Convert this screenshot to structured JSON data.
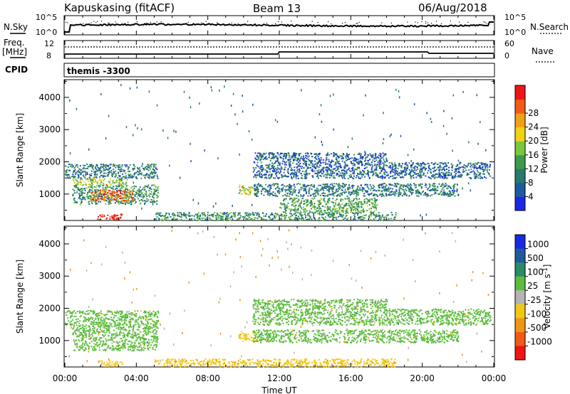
{
  "header": {
    "station": "Kapuskasing (fitACF)",
    "beam": "Beam 13",
    "date": "06/Aug/2018"
  },
  "top_panels": {
    "nsky_label": "N.Sky",
    "nsky_ticks": [
      "10^5",
      "10^0"
    ],
    "nsearch_label": "N.Search",
    "nsearch_ticks": [
      "10^5",
      "10^0"
    ],
    "freq_label": "Freq.",
    "freq_unit": "[MHz]",
    "freq_ticks": [
      "12",
      "8"
    ],
    "nave_label": "Nave",
    "nave_ticks": [
      "60",
      "0"
    ],
    "cpid_label": "CPID",
    "cpid_value": "themis -3300"
  },
  "chart_data": [
    {
      "type": "heatmap",
      "name": "power",
      "ylabel": "Slant Range [km]",
      "ylim": [
        180,
        4550
      ],
      "yticks": [
        1000,
        2000,
        3000,
        4000
      ],
      "xlim": [
        0,
        24
      ],
      "xticks": [
        "00:00",
        "04:00",
        "08:00",
        "12:00",
        "16:00",
        "20:00",
        "00:00"
      ],
      "colorbar": {
        "label": "Power [dB]",
        "ticks": [
          4,
          8,
          12,
          16,
          20,
          24,
          28
        ],
        "range": [
          0,
          30
        ],
        "colors": [
          "#1a28e6",
          "#1e5aa0",
          "#2a7a6a",
          "#3c9a4c",
          "#7cc83c",
          "#f0d414",
          "#f0a014",
          "#f05a14",
          "#f01414"
        ]
      },
      "regions": [
        {
          "t": [
            0.0,
            5.2
          ],
          "r": [
            1500,
            1950
          ],
          "level": 8
        },
        {
          "t": [
            0.4,
            3.5
          ],
          "r": [
            1300,
            1500
          ],
          "level": 16
        },
        {
          "t": [
            0.4,
            5.2
          ],
          "r": [
            700,
            1300
          ],
          "level": 10
        },
        {
          "t": [
            1.4,
            3.8
          ],
          "r": [
            800,
            1150
          ],
          "level": 24
        },
        {
          "t": [
            1.8,
            3.2
          ],
          "r": [
            220,
            400
          ],
          "level": 28
        },
        {
          "t": [
            9.7,
            10.8
          ],
          "r": [
            1000,
            1300
          ],
          "level": 16
        },
        {
          "t": [
            10.5,
            22.0
          ],
          "r": [
            950,
            1350
          ],
          "level": 8
        },
        {
          "t": [
            10.5,
            18.0
          ],
          "r": [
            1500,
            2300
          ],
          "level": 6
        },
        {
          "t": [
            12.0,
            17.5
          ],
          "r": [
            450,
            900
          ],
          "level": 12
        },
        {
          "t": [
            5.0,
            18.5
          ],
          "r": [
            200,
            450
          ],
          "level": 10
        },
        {
          "t": [
            18.0,
            23.8
          ],
          "r": [
            1500,
            2000
          ],
          "level": 6
        }
      ]
    },
    {
      "type": "heatmap",
      "name": "velocity",
      "ylabel": "Slant Range [km]",
      "ylim": [
        180,
        4550
      ],
      "yticks": [
        1000,
        2000,
        3000,
        4000
      ],
      "xlim": [
        0,
        24
      ],
      "xticks": [
        "00:00",
        "04:00",
        "08:00",
        "12:00",
        "16:00",
        "20:00",
        "00:00"
      ],
      "xlabel": "Time UT",
      "colorbar": {
        "label": "Velocity [m s^-1]",
        "ticks": [
          1000,
          500,
          100,
          25,
          -25,
          -100,
          -500,
          -1000
        ],
        "colors": [
          "#1a28e6",
          "#1e5aa0",
          "#2a8a6a",
          "#5cbc3c",
          "#b4b4b4",
          "#f0c814",
          "#f09614",
          "#f05a14",
          "#f01414"
        ]
      },
      "regions": [
        {
          "t": [
            0.0,
            5.2
          ],
          "r": [
            1500,
            1950
          ],
          "level": 25
        },
        {
          "t": [
            0.4,
            5.2
          ],
          "r": [
            700,
            1500
          ],
          "level": 25
        },
        {
          "t": [
            1.8,
            3.2
          ],
          "r": [
            220,
            400
          ],
          "level": -100
        },
        {
          "t": [
            9.7,
            10.8
          ],
          "r": [
            1000,
            1300
          ],
          "level": -100
        },
        {
          "t": [
            10.5,
            22.0
          ],
          "r": [
            950,
            1350
          ],
          "level": 25
        },
        {
          "t": [
            10.5,
            18.0
          ],
          "r": [
            1500,
            2300
          ],
          "level": 25
        },
        {
          "t": [
            5.0,
            18.5
          ],
          "r": [
            200,
            450
          ],
          "level": -100
        },
        {
          "t": [
            18.0,
            23.8
          ],
          "r": [
            1500,
            2000
          ],
          "level": 25
        }
      ]
    }
  ]
}
